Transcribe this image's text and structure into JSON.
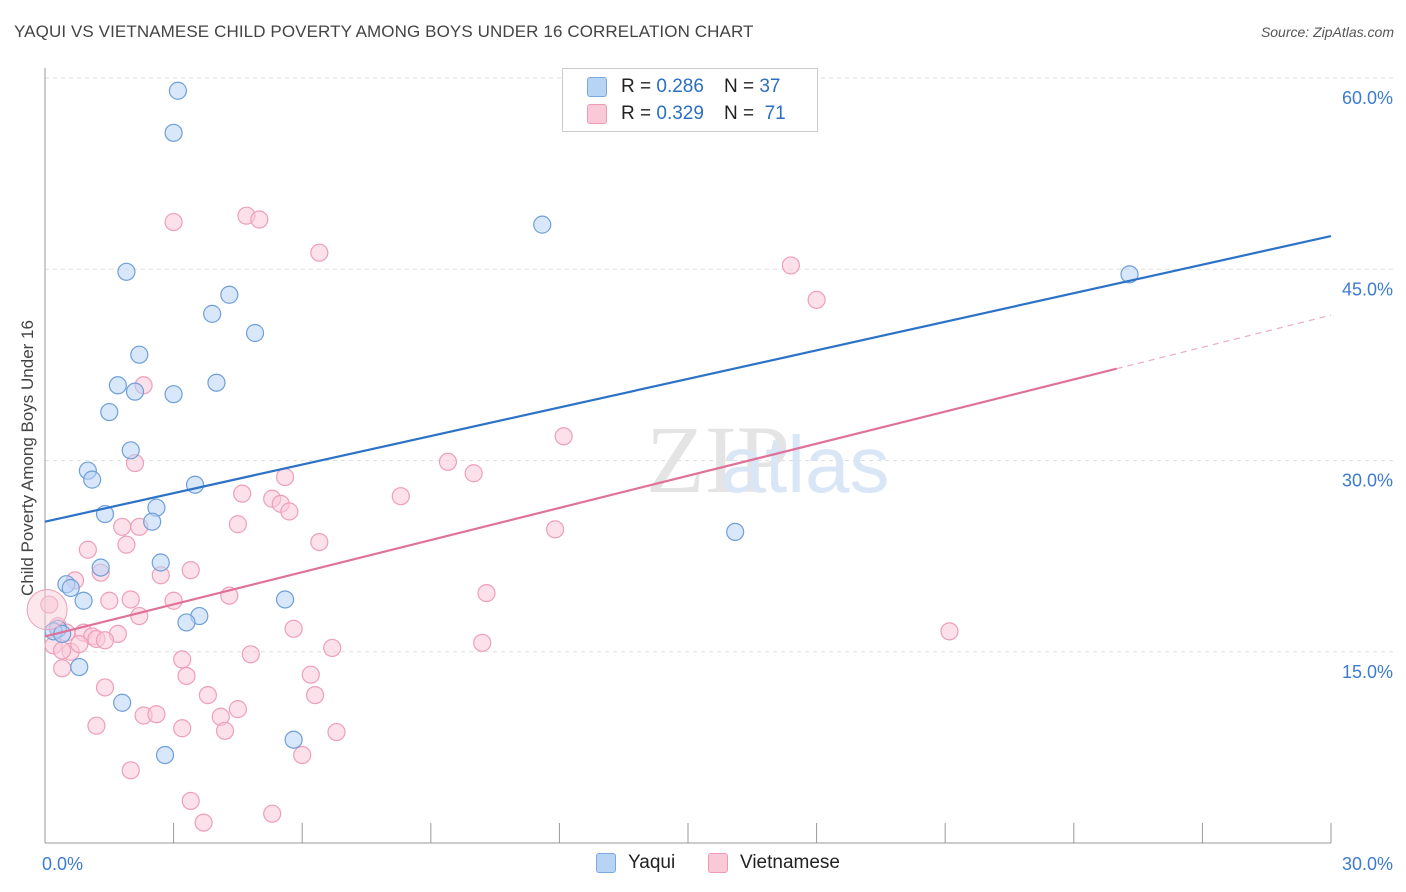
{
  "title": "YAQUI VS VIETNAMESE CHILD POVERTY AMONG BOYS UNDER 16 CORRELATION CHART",
  "source": "Source: ZipAtlas.com",
  "watermark": {
    "part1": "ZIP",
    "part2": "atlas"
  },
  "legend": {
    "r_label": "R =",
    "n_label": "N =",
    "rows": [
      {
        "name": "Yaqui",
        "r": "0.286",
        "n": "37",
        "fill": "#b8d4f5",
        "stroke": "#7aa8e0"
      },
      {
        "name": "Vietnamese",
        "r": "0.329",
        "n": "71",
        "fill": "#f9c9d8",
        "stroke": "#ef9ab5"
      }
    ]
  },
  "chart_data": {
    "type": "scatter",
    "title": "YAQUI VS VIETNAMESE CHILD POVERTY AMONG BOYS UNDER 16 CORRELATION CHART",
    "xlabel": "",
    "ylabel": "Child Poverty Among Boys Under 16",
    "xlim": [
      0,
      30
    ],
    "ylim": [
      0,
      60
    ],
    "x_tick_labels": [
      "0.0%",
      "30.0%"
    ],
    "y_ticks": [
      {
        "value": 15,
        "label": "15.0%"
      },
      {
        "value": 30,
        "label": "30.0%"
      },
      {
        "value": 45,
        "label": "45.0%"
      },
      {
        "value": 60,
        "label": "60.0%"
      }
    ],
    "grid": true,
    "series": [
      {
        "name": "Yaqui",
        "color": "#2c72c7",
        "point_fill": "#b8d4f5",
        "point_stroke": "#6f9fd9",
        "trend": {
          "x0": 0,
          "y0": 25.2,
          "x1": 30,
          "y1": 47.6
        },
        "points": [
          [
            3.1,
            59.0
          ],
          [
            3.0,
            55.7
          ],
          [
            1.9,
            44.8
          ],
          [
            4.3,
            43.0
          ],
          [
            3.9,
            41.5
          ],
          [
            4.9,
            40.0
          ],
          [
            2.2,
            38.3
          ],
          [
            1.7,
            35.9
          ],
          [
            3.0,
            35.2
          ],
          [
            4.0,
            36.1
          ],
          [
            2.1,
            35.4
          ],
          [
            1.5,
            33.8
          ],
          [
            2.0,
            30.8
          ],
          [
            1.0,
            29.2
          ],
          [
            1.1,
            28.5
          ],
          [
            3.5,
            28.1
          ],
          [
            1.4,
            25.8
          ],
          [
            2.6,
            26.3
          ],
          [
            2.5,
            25.2
          ],
          [
            0.5,
            20.3
          ],
          [
            0.6,
            20.0
          ],
          [
            1.3,
            21.6
          ],
          [
            2.7,
            22.0
          ],
          [
            0.9,
            19.0
          ],
          [
            5.6,
            19.1
          ],
          [
            3.6,
            17.8
          ],
          [
            3.3,
            17.3
          ],
          [
            0.3,
            16.8
          ],
          [
            0.2,
            16.6
          ],
          [
            0.4,
            16.4
          ],
          [
            0.8,
            13.8
          ],
          [
            1.8,
            11.0
          ],
          [
            2.8,
            6.9
          ],
          [
            5.8,
            8.1
          ],
          [
            11.6,
            48.5
          ],
          [
            16.1,
            24.4
          ],
          [
            25.3,
            44.6
          ]
        ]
      },
      {
        "name": "Vietnamese",
        "color": "#e0729a",
        "point_fill": "#f9c9d8",
        "point_stroke": "#ee9fb8",
        "trend": {
          "x0": 0,
          "y0": 16.2,
          "x1": 25.0,
          "y1": 37.2
        },
        "trend_dashed": {
          "x0": 25.0,
          "y0": 37.2,
          "x1": 30,
          "y1": 41.4
        },
        "points": [
          [
            0.1,
            18.7
          ],
          [
            0.3,
            17.0
          ],
          [
            0.5,
            16.5
          ],
          [
            0.2,
            15.5
          ],
          [
            0.6,
            15.0
          ],
          [
            0.4,
            13.7
          ],
          [
            0.9,
            16.5
          ],
          [
            1.1,
            16.2
          ],
          [
            0.8,
            15.6
          ],
          [
            1.2,
            16.0
          ],
          [
            0.7,
            20.6
          ],
          [
            1.0,
            23.0
          ],
          [
            1.3,
            21.2
          ],
          [
            1.5,
            19.0
          ],
          [
            1.9,
            23.4
          ],
          [
            1.8,
            24.8
          ],
          [
            2.0,
            19.1
          ],
          [
            2.2,
            17.8
          ],
          [
            1.7,
            16.4
          ],
          [
            2.7,
            21.0
          ],
          [
            3.0,
            19.0
          ],
          [
            3.4,
            21.4
          ],
          [
            4.3,
            19.4
          ],
          [
            4.5,
            25.0
          ],
          [
            4.6,
            27.4
          ],
          [
            5.3,
            27.0
          ],
          [
            5.5,
            26.6
          ],
          [
            5.7,
            26.0
          ],
          [
            5.6,
            28.7
          ],
          [
            6.4,
            23.6
          ],
          [
            5.8,
            16.8
          ],
          [
            4.8,
            14.8
          ],
          [
            3.2,
            14.4
          ],
          [
            3.3,
            13.1
          ],
          [
            1.4,
            12.2
          ],
          [
            2.3,
            10.0
          ],
          [
            2.6,
            10.1
          ],
          [
            3.8,
            11.6
          ],
          [
            4.1,
            9.9
          ],
          [
            4.5,
            10.5
          ],
          [
            4.2,
            8.8
          ],
          [
            3.2,
            9.0
          ],
          [
            1.2,
            9.2
          ],
          [
            6.2,
            13.2
          ],
          [
            6.3,
            11.6
          ],
          [
            6.7,
            15.3
          ],
          [
            6.8,
            8.7
          ],
          [
            6.0,
            6.9
          ],
          [
            2.0,
            5.7
          ],
          [
            3.4,
            3.3
          ],
          [
            3.7,
            1.6
          ],
          [
            5.3,
            2.3
          ],
          [
            2.3,
            35.9
          ],
          [
            3.0,
            48.7
          ],
          [
            4.7,
            49.2
          ],
          [
            5.0,
            48.9
          ],
          [
            6.4,
            46.3
          ],
          [
            8.3,
            27.2
          ],
          [
            9.4,
            29.9
          ],
          [
            10.0,
            29.0
          ],
          [
            10.3,
            19.6
          ],
          [
            10.2,
            15.7
          ],
          [
            11.9,
            24.6
          ],
          [
            12.1,
            31.9
          ],
          [
            17.4,
            45.3
          ],
          [
            18.0,
            42.6
          ],
          [
            21.1,
            16.6
          ],
          [
            1.4,
            15.9
          ],
          [
            2.1,
            29.8
          ],
          [
            0.4,
            15.1
          ],
          [
            2.2,
            24.8
          ]
        ]
      }
    ]
  }
}
